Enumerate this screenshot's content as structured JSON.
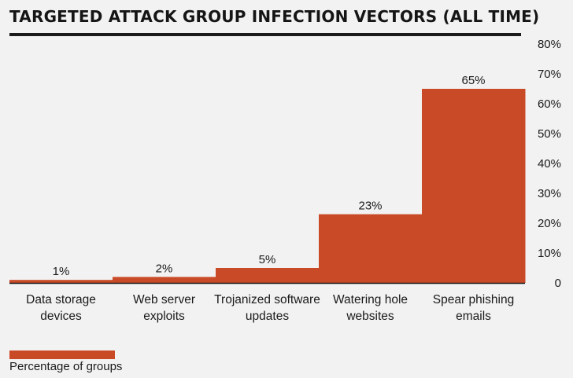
{
  "chart_data": {
    "type": "bar",
    "title": "TARGETED ATTACK GROUP INFECTION VECTORS (ALL TIME)",
    "xlabel": "",
    "ylabel": "",
    "ylim": [
      0,
      80
    ],
    "yticks": [
      0,
      10,
      20,
      30,
      40,
      50,
      60,
      70,
      80
    ],
    "yticklabels": [
      "0",
      "10%",
      "20%",
      "30%",
      "40%",
      "50%",
      "60%",
      "70%",
      "80%"
    ],
    "y_axis_position": "right",
    "grid": false,
    "legend_position": "bottom-left",
    "categories": [
      [
        "Data storage",
        "devices"
      ],
      [
        "Web server",
        "exploits"
      ],
      [
        "Trojanized software",
        "updates"
      ],
      [
        "Watering hole",
        "websites"
      ],
      [
        "Spear phishing",
        "emails"
      ]
    ],
    "series": [
      {
        "name": "Percentage of groups",
        "values": [
          1,
          2,
          5,
          23,
          65
        ],
        "labels": [
          "1%",
          "2%",
          "5%",
          "23%",
          "65%"
        ]
      }
    ]
  },
  "colors": {
    "bar": "#c94a26",
    "axis": "#1b1b1b",
    "background": "#f3f2f2"
  }
}
